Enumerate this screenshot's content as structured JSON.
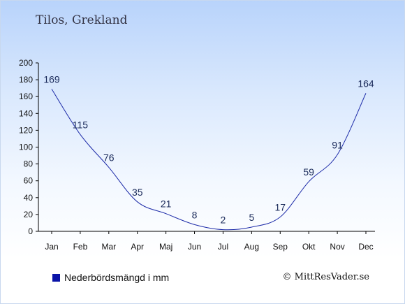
{
  "place": "Tilos, Grekland",
  "legend_label": "Nederbördsmängd i mm",
  "copyright": "© MittResVader.se",
  "colors": {
    "line": "#1c2aa8",
    "legend_swatch": "#0a14a8",
    "text": "#1a2a5a"
  },
  "chart_data": {
    "type": "line",
    "categories": [
      "Jan",
      "Feb",
      "Mar",
      "Apr",
      "Maj",
      "Jun",
      "Jul",
      "Aug",
      "Sep",
      "Okt",
      "Nov",
      "Dec"
    ],
    "series": [
      {
        "name": "Nederbördsmängd i mm",
        "values": [
          169,
          115,
          76,
          35,
          21,
          8,
          2,
          5,
          17,
          59,
          91,
          164
        ]
      }
    ],
    "yticks": [
      0,
      20,
      40,
      60,
      80,
      100,
      120,
      140,
      160,
      180,
      200
    ],
    "ylim": [
      0,
      200
    ],
    "grid": false,
    "legend": "bottom-left"
  }
}
